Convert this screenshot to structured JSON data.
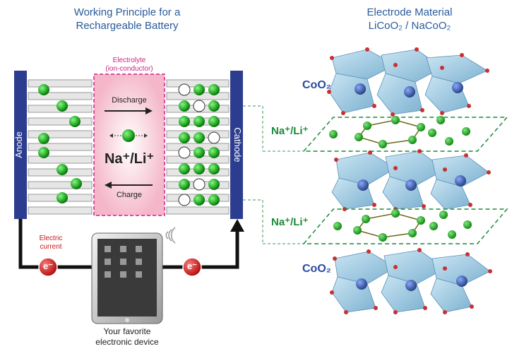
{
  "left_panel": {
    "title_line1": "Working Principle for a",
    "title_line2": "Rechargeable Battery",
    "electrolyte_line1": "Electrolyte",
    "electrolyte_line2": "(ion-conductor)",
    "discharge_label": "Discharge",
    "charge_label": "Charge",
    "ion_label": "Na⁺/Li⁺",
    "anode_label": "Anode",
    "cathode_label": "Cathode",
    "electric_current_line1": "Electric",
    "electric_current_line2": "current",
    "electron_symbol": "e⁻",
    "device_line1": "Your favorite",
    "device_line2": "electronic device"
  },
  "right_panel": {
    "title_line1": "Electrode Material",
    "title_line2": "LiCoO₂ / NaCoO₂",
    "layer_label_top": "CoO₂",
    "ion_layer_label_1": "Na⁺/Li⁺",
    "ion_layer_label_2": "Na⁺/Li⁺",
    "layer_label_bottom": "CoO₂"
  },
  "colors": {
    "title_blue": "#2a5b9a",
    "electrode_navy": "#2c3d8f",
    "ion_green": "#2db82d",
    "electrolyte_magenta": "#d0208a",
    "electron_red": "#d42020",
    "coo2_label": "#2a4aa0",
    "ion_label_green": "#1a8a3a",
    "octahedra_blue": "#8ec4e0"
  }
}
